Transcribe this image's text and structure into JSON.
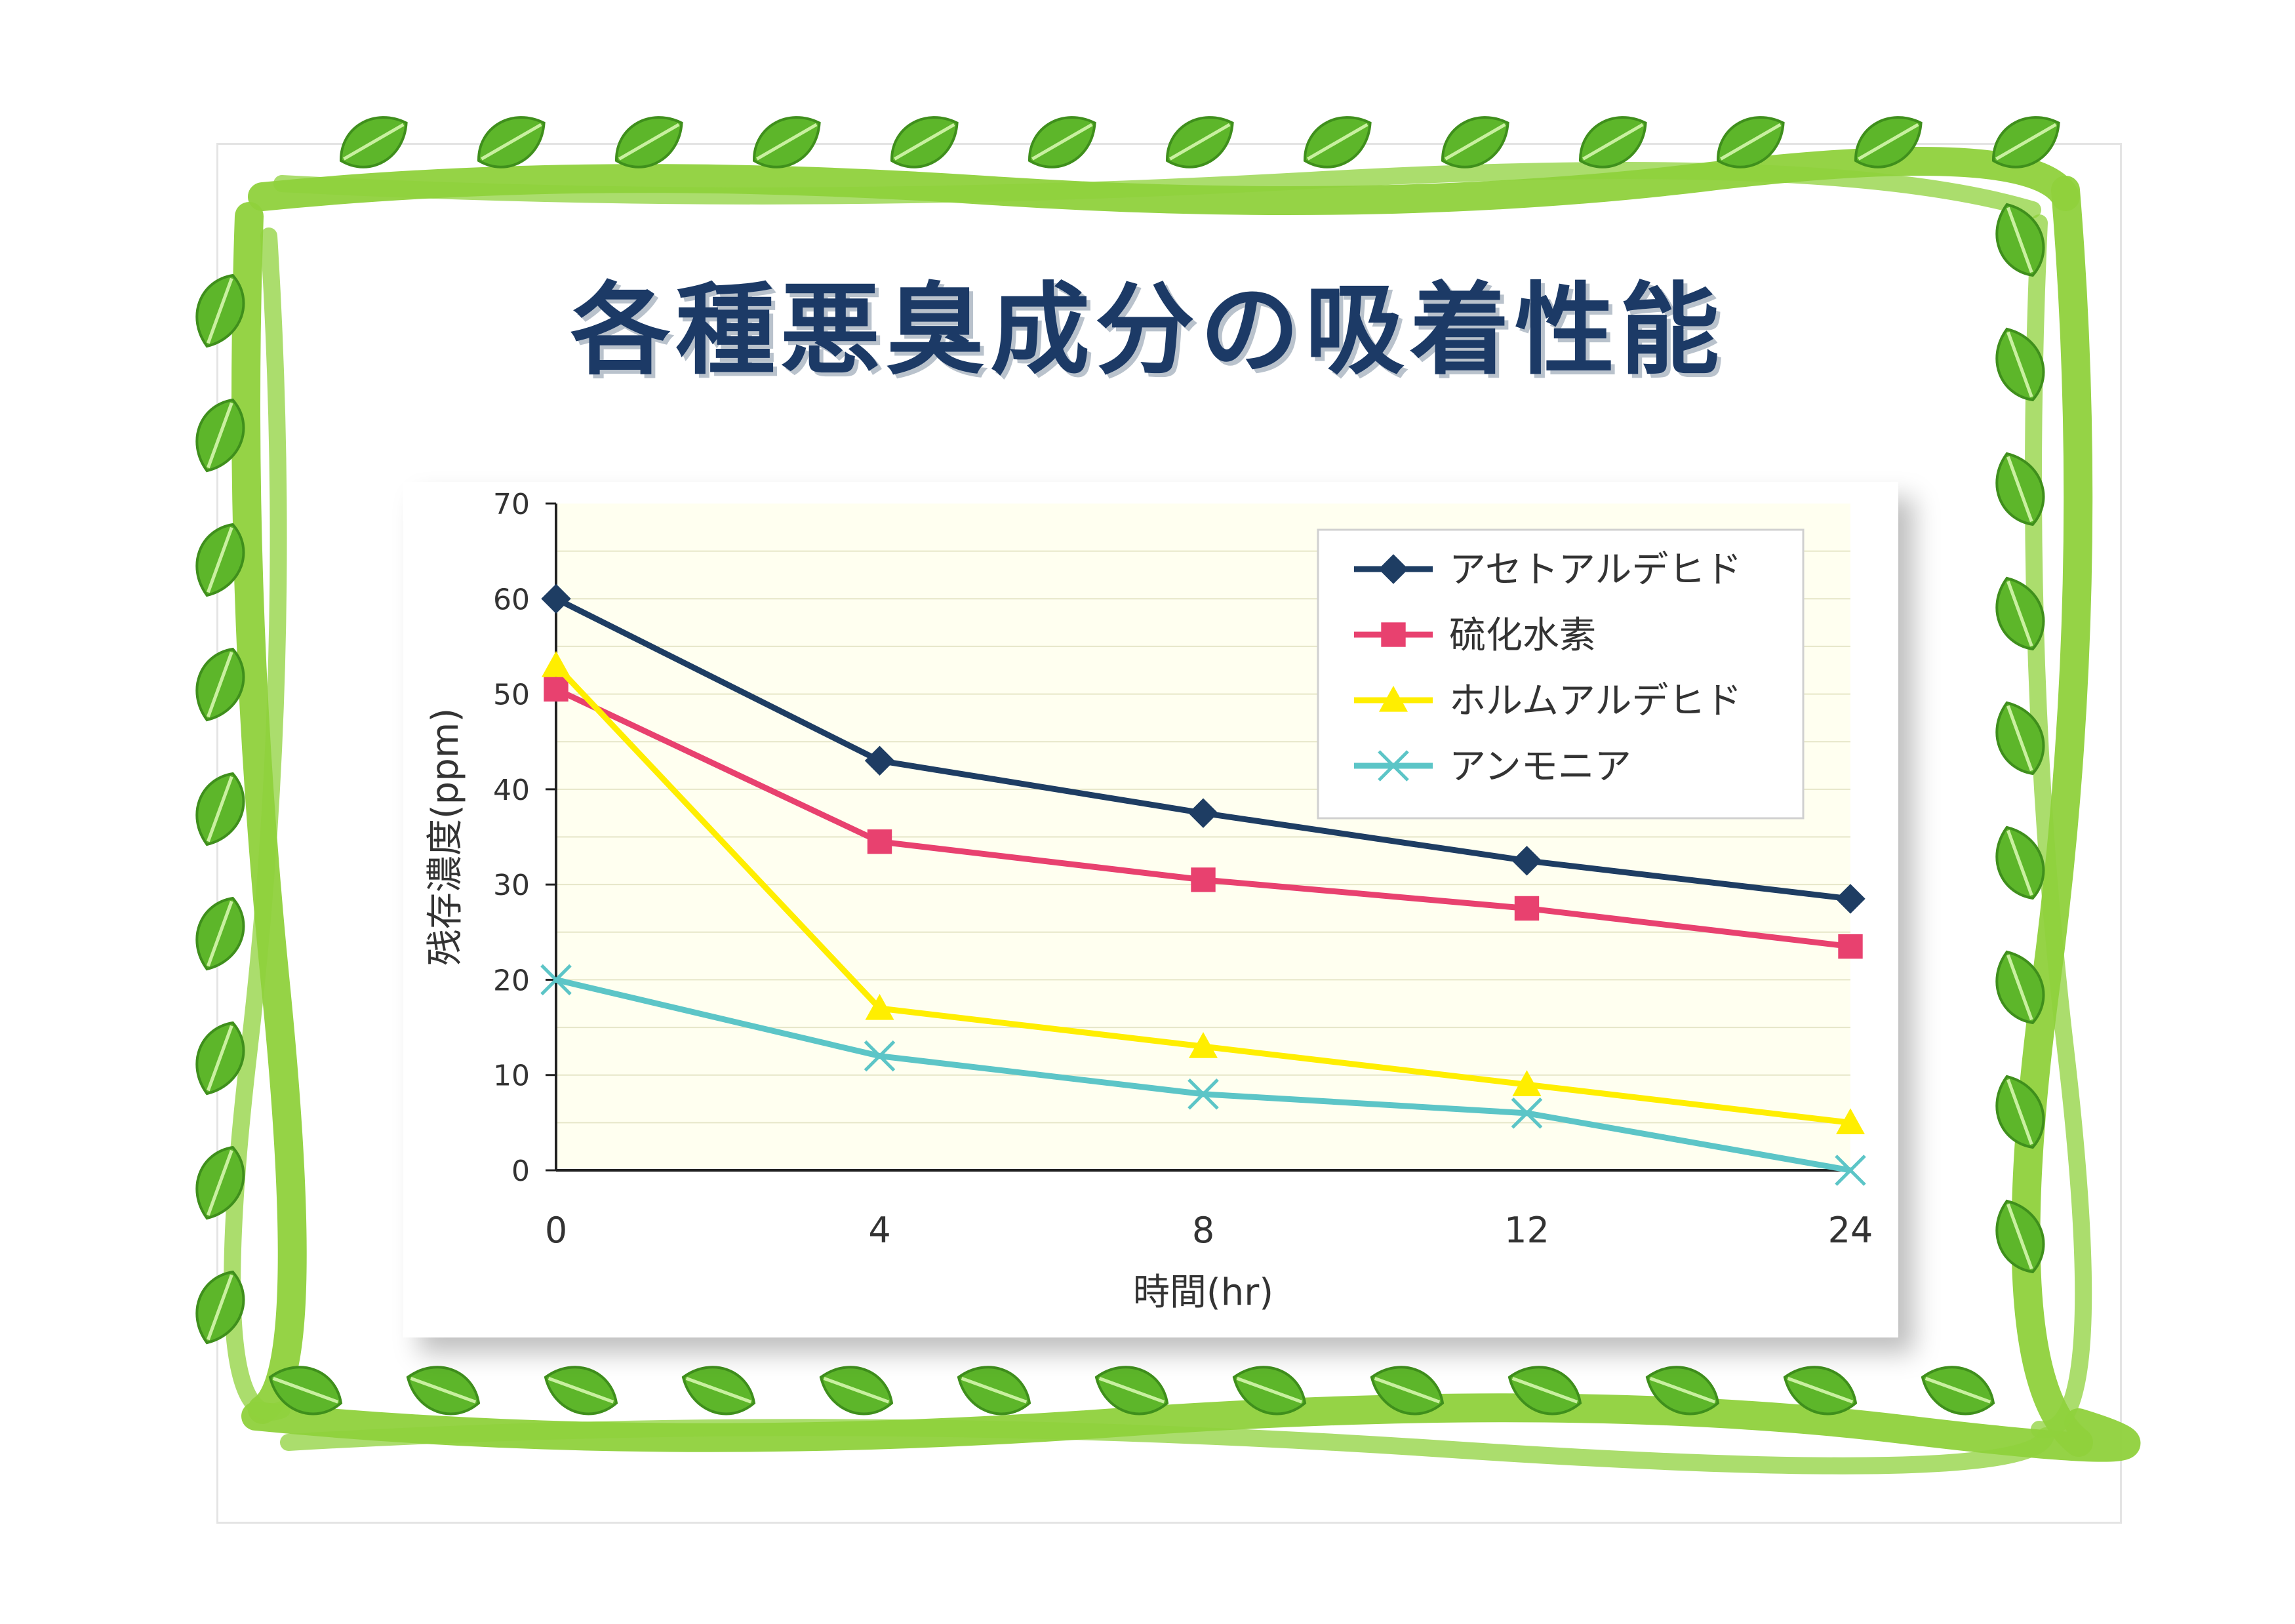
{
  "title": "各種悪臭成分の吸着性能",
  "colors": {
    "frame_green": "#8fd13c",
    "leaf_green": "#5db62a",
    "title_color": "#1c3a66",
    "plot_bg": "#fffff0"
  },
  "chart_data": {
    "type": "line",
    "categories": [
      "0",
      "4",
      "8",
      "12",
      "24"
    ],
    "xlabel": "時間(hr)",
    "ylabel": "残存濃度(ppm)",
    "ylim": [
      0,
      70
    ],
    "yticks": [
      0,
      10,
      20,
      30,
      40,
      50,
      60,
      70
    ],
    "grid": true,
    "legend_position": "top-right",
    "series": [
      {
        "name": "アセトアルデヒド",
        "values": [
          60,
          43,
          37.5,
          32.5,
          28.5
        ],
        "color": "#1e3d63",
        "marker": "diamond"
      },
      {
        "name": "硫化水素",
        "values": [
          50.5,
          34.5,
          30.5,
          27.5,
          23.5
        ],
        "color": "#e8416f",
        "marker": "square"
      },
      {
        "name": "ホルムアルデヒド",
        "values": [
          53,
          17,
          13,
          9,
          5
        ],
        "color": "#ffee00",
        "marker": "triangle"
      },
      {
        "name": "アンモニア",
        "values": [
          20,
          12,
          8,
          6,
          0
        ],
        "color": "#5cc5c7",
        "marker": "x"
      }
    ]
  }
}
